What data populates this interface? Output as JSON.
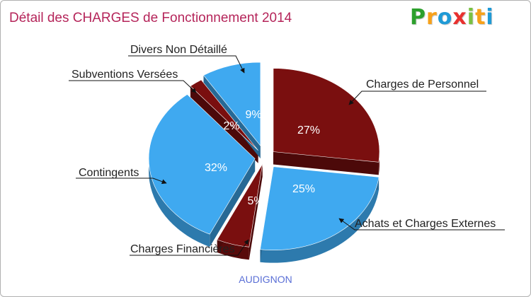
{
  "chart_data": {
    "type": "pie",
    "title": "Détail des CHARGES de Fonctionnement 2014",
    "subtitle": "AUDIGNON",
    "slices": [
      {
        "name": "Charges de Personnel",
        "value": 27,
        "label": "27%",
        "color": "#7a0f0f"
      },
      {
        "name": "Achats et Charges Externes",
        "value": 25,
        "label": "25%",
        "color": "#3fa9f0"
      },
      {
        "name": "Charges Financières",
        "value": 5,
        "label": "5%",
        "color": "#7a0f0f"
      },
      {
        "name": "Contingents",
        "value": 32,
        "label": "32%",
        "color": "#3fa9f0"
      },
      {
        "name": "Subventions Versées",
        "value": 2,
        "label": "2%",
        "color": "#7a0f0f"
      },
      {
        "name": "Divers Non Détaillé",
        "value": 9,
        "label": "9%",
        "color": "#3fa9f0"
      }
    ]
  },
  "brand": {
    "logo_letters": [
      "P",
      "r",
      "o",
      "x",
      "i",
      "t",
      "i"
    ],
    "logo_colors": [
      "#2ca02c",
      "#f7a11a",
      "#1f9ad6",
      "#e8302e",
      "#7ac143",
      "#f7a11a",
      "#1f9ad6"
    ]
  }
}
